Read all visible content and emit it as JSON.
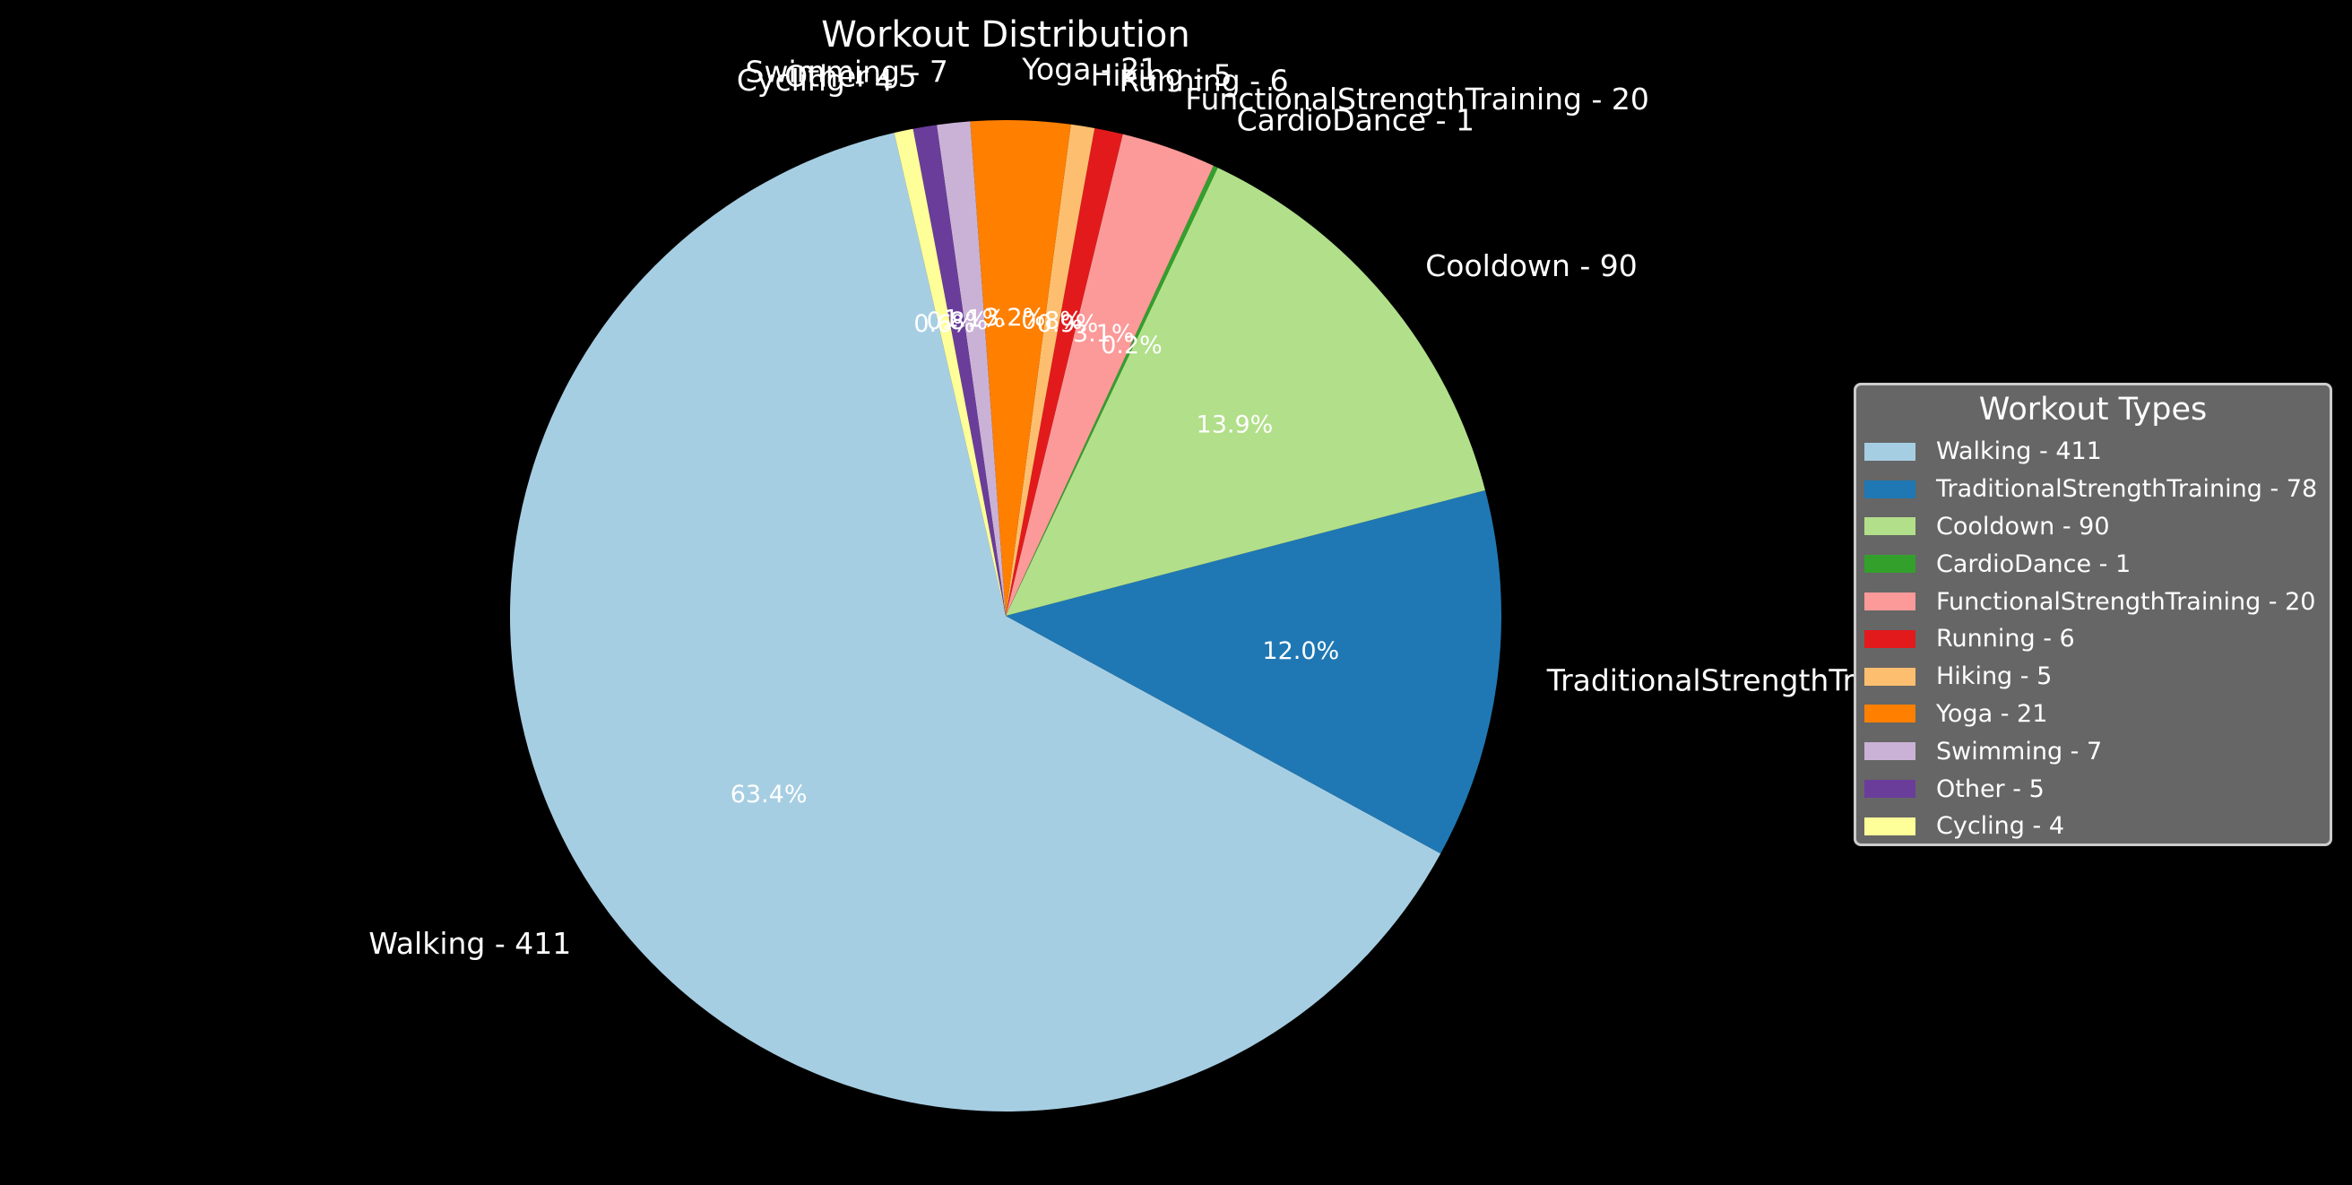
{
  "chart_data": {
    "type": "pie",
    "title": "Workout Distribution",
    "start_angle_deg": 103,
    "direction": "counterclockwise",
    "slices": [
      {
        "name": "Walking",
        "value": 411,
        "percent_label": "63.4%",
        "label": "Walking - 411",
        "color": "#a6cee3"
      },
      {
        "name": "TraditionalStrengthTraining",
        "value": 78,
        "percent_label": "12.0%",
        "label": "TraditionalStrengthTraining - 78",
        "color": "#1f78b4"
      },
      {
        "name": "Cooldown",
        "value": 90,
        "percent_label": "13.9%",
        "label": "Cooldown - 90",
        "color": "#b2df8a"
      },
      {
        "name": "CardioDance",
        "value": 1,
        "percent_label": "0.2%",
        "label": "CardioDance - 1",
        "color": "#33a02c"
      },
      {
        "name": "FunctionalStrengthTraining",
        "value": 20,
        "percent_label": "3.1%",
        "label": "FunctionalStrengthTraining - 20",
        "color": "#fb9a99"
      },
      {
        "name": "Running",
        "value": 6,
        "percent_label": "0.9%",
        "label": "Running - 6",
        "color": "#e31a1c"
      },
      {
        "name": "Hiking",
        "value": 5,
        "percent_label": "0.8%",
        "label": "Hiking - 5",
        "color": "#fdbf6f"
      },
      {
        "name": "Yoga",
        "value": 21,
        "percent_label": "3.2%",
        "label": "Yoga - 21",
        "color": "#ff7f00"
      },
      {
        "name": "Swimming",
        "value": 7,
        "percent_label": "1.1%",
        "label": "Swimming - 7",
        "color": "#cab2d6"
      },
      {
        "name": "Other",
        "value": 5,
        "percent_label": "0.8%",
        "label": "Other - 5",
        "color": "#6a3d9a"
      },
      {
        "name": "Cycling",
        "value": 4,
        "percent_label": "0.6%",
        "label": "Cycling - 4",
        "color": "#ffff99"
      }
    ],
    "legend": {
      "title": "Workout Types",
      "placement": "right"
    }
  }
}
